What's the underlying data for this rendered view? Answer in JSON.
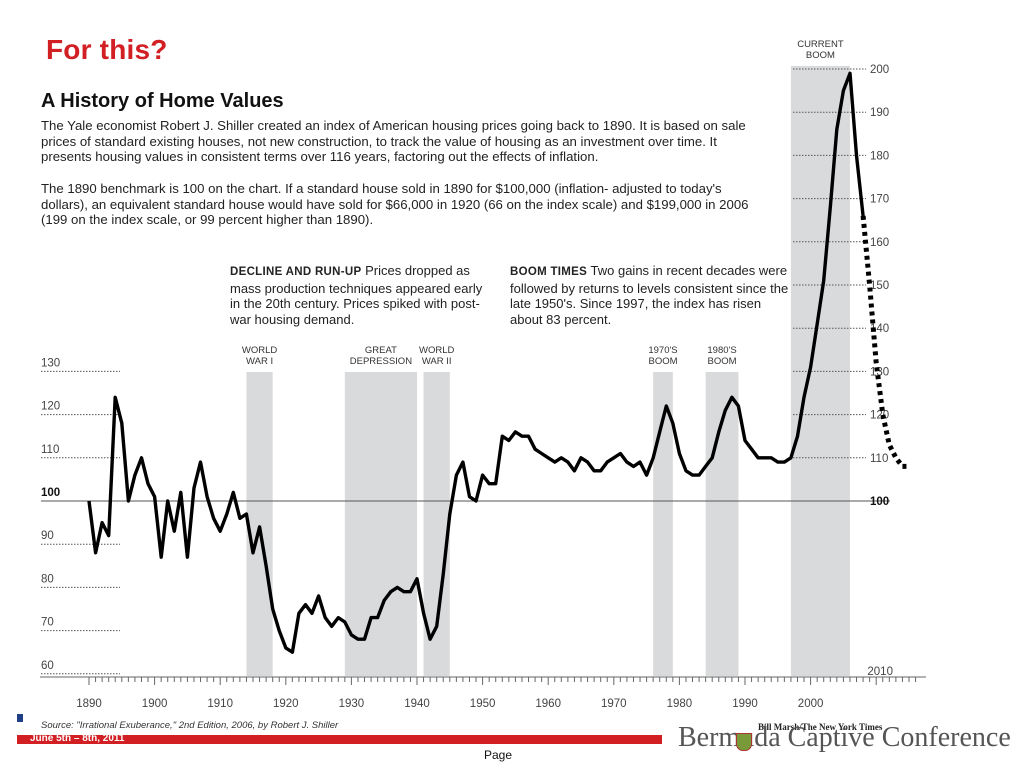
{
  "slide": {
    "heading": "For this?",
    "footer_date": "June 5th – 8th, 2011",
    "conference": "Bermuda Captive Conference",
    "page_label": "Page"
  },
  "article": {
    "title": "A History of Home Values",
    "paragraph1": "The Yale economist Robert J. Shiller created an index of American housing prices going back to 1890. It is based on sale prices of standard existing houses, not new construction, to track the value of housing as an investment over time. It presents housing values in consistent terms over 116 years, factoring out the effects of inflation.",
    "paragraph2": "The 1890 benchmark is 100 on the chart. If a standard house sold in 1890 for $100,000 (inflation- adjusted to today's dollars), an equivalent standard house would have sold for $66,000 in 1920 (66 on the index scale) and $199,000 in 2006 (199 on the index scale, or 99 percent higher than 1890).",
    "decline_head": "DECLINE AND RUN-UP",
    "decline_text": "Prices dropped as mass production techniques appeared early in the 20th century. Prices spiked with post-war housing demand.",
    "boom_head": "BOOM TIMES",
    "boom_text": "Two gains in recent decades were followed by returns to levels consistent since the late 1950's. Since 1997, the index has risen about 83 percent.",
    "source": "Source: \"Irrational Exuberance,\" 2nd Edition, 2006, by Robert J. Shiller",
    "credit": "Bill Marsh/The New York Times"
  },
  "chart_data": {
    "type": "line",
    "title": "A History of Home Values",
    "xlabel": "",
    "ylabel": "",
    "xlim": [
      1890,
      2010
    ],
    "ylim": [
      60,
      200
    ],
    "x_ticks": [
      "1890",
      "1900",
      "1910",
      "1920",
      "1930",
      "1940",
      "1950",
      "1960",
      "1970",
      "1980",
      "1990",
      "2000",
      "2010"
    ],
    "y_ticks_left": [
      "60",
      "70",
      "80",
      "90",
      "100",
      "110",
      "120",
      "130"
    ],
    "y_ticks_right": [
      "100",
      "110",
      "120",
      "130",
      "140",
      "150",
      "160",
      "170",
      "180",
      "190",
      "200"
    ],
    "baseline": 100,
    "bands": [
      {
        "label1": "WORLD",
        "label2": "WAR I",
        "start": 1914,
        "end": 1918
      },
      {
        "label1": "GREAT",
        "label2": "DEPRESSION",
        "start": 1929,
        "end": 1940
      },
      {
        "label1": "WORLD",
        "label2": "WAR II",
        "start": 1941,
        "end": 1945
      },
      {
        "label1": "1970'S",
        "label2": "BOOM",
        "start": 1976,
        "end": 1979
      },
      {
        "label1": "1980'S",
        "label2": "BOOM",
        "start": 1984,
        "end": 1989
      },
      {
        "label1": "CURRENT",
        "label2": "BOOM",
        "start": 1997,
        "end": 2006
      }
    ],
    "series": [
      {
        "style": "solid",
        "points": [
          [
            1890,
            100
          ],
          [
            1891,
            88
          ],
          [
            1892,
            95
          ],
          [
            1893,
            92
          ],
          [
            1894,
            124
          ],
          [
            1895,
            118
          ],
          [
            1896,
            100
          ],
          [
            1897,
            106
          ],
          [
            1898,
            110
          ],
          [
            1899,
            104
          ],
          [
            1900,
            101
          ],
          [
            1901,
            87
          ],
          [
            1902,
            100
          ],
          [
            1903,
            93
          ],
          [
            1904,
            102
          ],
          [
            1905,
            87
          ],
          [
            1906,
            103
          ],
          [
            1907,
            109
          ],
          [
            1908,
            101
          ],
          [
            1909,
            96
          ],
          [
            1910,
            93
          ],
          [
            1911,
            97
          ],
          [
            1912,
            102
          ],
          [
            1913,
            96
          ],
          [
            1914,
            97
          ],
          [
            1915,
            88
          ],
          [
            1916,
            94
          ],
          [
            1917,
            85
          ],
          [
            1918,
            75
          ],
          [
            1919,
            70
          ],
          [
            1920,
            66
          ],
          [
            1921,
            65
          ],
          [
            1922,
            74
          ],
          [
            1923,
            76
          ],
          [
            1924,
            74
          ],
          [
            1925,
            78
          ],
          [
            1926,
            73
          ],
          [
            1927,
            71
          ],
          [
            1928,
            73
          ],
          [
            1929,
            72
          ],
          [
            1930,
            69
          ],
          [
            1931,
            68
          ],
          [
            1932,
            68
          ],
          [
            1933,
            73
          ],
          [
            1934,
            73
          ],
          [
            1935,
            77
          ],
          [
            1936,
            79
          ],
          [
            1937,
            80
          ],
          [
            1938,
            79
          ],
          [
            1939,
            79
          ],
          [
            1940,
            82
          ],
          [
            1941,
            74
          ],
          [
            1942,
            68
          ],
          [
            1943,
            71
          ],
          [
            1944,
            83
          ],
          [
            1945,
            97
          ],
          [
            1946,
            106
          ],
          [
            1947,
            109
          ],
          [
            1948,
            101
          ],
          [
            1949,
            100
          ],
          [
            1950,
            106
          ],
          [
            1951,
            104
          ],
          [
            1952,
            104
          ],
          [
            1953,
            115
          ],
          [
            1954,
            114
          ],
          [
            1955,
            116
          ],
          [
            1956,
            115
          ],
          [
            1957,
            115
          ],
          [
            1958,
            112
          ],
          [
            1959,
            111
          ],
          [
            1960,
            110
          ],
          [
            1961,
            109
          ],
          [
            1962,
            110
          ],
          [
            1963,
            109
          ],
          [
            1964,
            107
          ],
          [
            1965,
            110
          ],
          [
            1966,
            109
          ],
          [
            1967,
            107
          ],
          [
            1968,
            107
          ],
          [
            1969,
            109
          ],
          [
            1970,
            110
          ],
          [
            1971,
            111
          ],
          [
            1972,
            109
          ],
          [
            1973,
            108
          ],
          [
            1974,
            109
          ],
          [
            1975,
            106
          ],
          [
            1976,
            110
          ],
          [
            1977,
            116
          ],
          [
            1978,
            122
          ],
          [
            1979,
            118
          ],
          [
            1980,
            111
          ],
          [
            1981,
            107
          ],
          [
            1982,
            106
          ],
          [
            1983,
            106
          ],
          [
            1984,
            108
          ],
          [
            1985,
            110
          ],
          [
            1986,
            116
          ],
          [
            1987,
            121
          ],
          [
            1988,
            124
          ],
          [
            1989,
            122
          ],
          [
            1990,
            114
          ],
          [
            1991,
            112
          ],
          [
            1992,
            110
          ],
          [
            1993,
            110
          ],
          [
            1994,
            110
          ],
          [
            1995,
            109
          ],
          [
            1996,
            109
          ],
          [
            1997,
            110
          ],
          [
            1998,
            115
          ],
          [
            1999,
            124
          ],
          [
            2000,
            131
          ],
          [
            2001,
            141
          ],
          [
            2002,
            151
          ],
          [
            2003,
            168
          ],
          [
            2004,
            186
          ],
          [
            2005,
            195
          ],
          [
            2006,
            199
          ],
          [
            2007,
            180
          ],
          [
            2008,
            166
          ]
        ]
      },
      {
        "style": "dotted",
        "points": [
          [
            2008,
            166
          ],
          [
            2009,
            150
          ],
          [
            2010,
            132
          ],
          [
            2011,
            120
          ],
          [
            2012,
            113
          ],
          [
            2013,
            110
          ],
          [
            2014,
            108
          ],
          [
            2015,
            108
          ]
        ]
      }
    ]
  }
}
